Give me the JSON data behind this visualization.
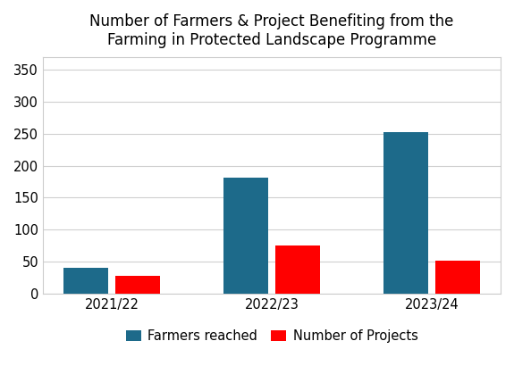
{
  "title_line1": "Number of Farmers & Project Benefiting from the",
  "title_line2": "Farming in Protected Landscape Programme",
  "categories": [
    "2021/22",
    "2022/23",
    "2023/24"
  ],
  "farmers": [
    40,
    182,
    253
  ],
  "projects": [
    28,
    75,
    52
  ],
  "farmer_color": "#1d6a8a",
  "project_color": "#ff0000",
  "legend_farmers": "Farmers reached",
  "legend_projects": "Number of Projects",
  "ylim": [
    0,
    370
  ],
  "yticks": [
    0,
    50,
    100,
    150,
    200,
    250,
    300,
    350
  ],
  "background_color": "#ffffff",
  "grid_color": "#d0d0d0",
  "bar_width": 0.28,
  "title_fontsize": 12,
  "tick_fontsize": 10.5,
  "legend_fontsize": 10.5,
  "border_color": "#cccccc"
}
